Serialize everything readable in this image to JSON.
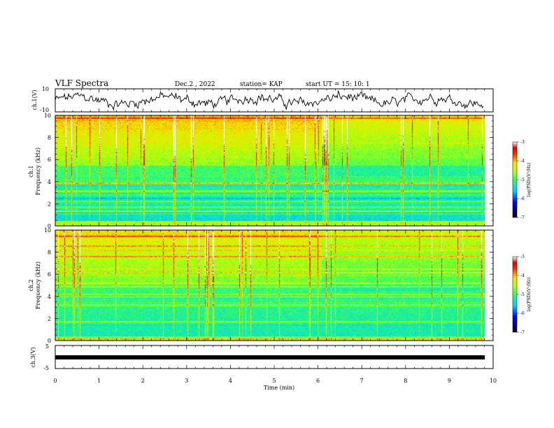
{
  "header": {
    "title": "VLF Spectra",
    "date": "Dec.2 , 2022",
    "station": "station= KAP",
    "start": "start UT = 15: 10: 1"
  },
  "chart_data": [
    {
      "type": "line",
      "panel": "ch1-waveform",
      "ylabel": "ch.1(V)",
      "ylim": [
        -10,
        10
      ],
      "y_ticks": [
        "10",
        "-10"
      ],
      "xlim": [
        0,
        10
      ],
      "line_color": "#000000"
    },
    {
      "type": "heatmap",
      "panel": "ch1-spectrogram",
      "ylabel": "ch.1\nFrequency (kHz)",
      "ylim": [
        0,
        10
      ],
      "y_ticks": [
        "0",
        "2",
        "4",
        "6",
        "8",
        "10"
      ],
      "xlim": [
        0,
        10
      ],
      "colorbar": {
        "label": "log(PSD)(V^2/Hz)",
        "range": [
          -7,
          -3
        ],
        "ticks": [
          "-3",
          "-4",
          "-5",
          "-6",
          "-7"
        ]
      }
    },
    {
      "type": "heatmap",
      "panel": "ch2-spectrogram",
      "ylabel": "ch.2\nFrequency (kHz)",
      "ylim": [
        0,
        10
      ],
      "y_ticks": [
        "0",
        "2",
        "4",
        "6",
        "8",
        "10"
      ],
      "xlim": [
        0,
        10
      ],
      "colorbar": {
        "label": "log(PSD)(V^2/Hz)",
        "range": [
          -7,
          -3
        ],
        "ticks": [
          "-3",
          "-4",
          "-5",
          "-6",
          "-7"
        ]
      }
    },
    {
      "type": "line",
      "panel": "ch3-waveform",
      "ylabel": "ch.3(V)",
      "ylim": [
        -5,
        5
      ],
      "y_ticks": [
        "5",
        "-5"
      ],
      "xlim": [
        0,
        10
      ],
      "line_color": "#000000"
    }
  ],
  "xaxis": {
    "label": "Time (min)",
    "ticks": [
      "0",
      "1",
      "2",
      "3",
      "4",
      "5",
      "6",
      "7",
      "8",
      "9",
      "10"
    ]
  },
  "colorbar_label_text": "log(PSD)(V²/Hz)"
}
